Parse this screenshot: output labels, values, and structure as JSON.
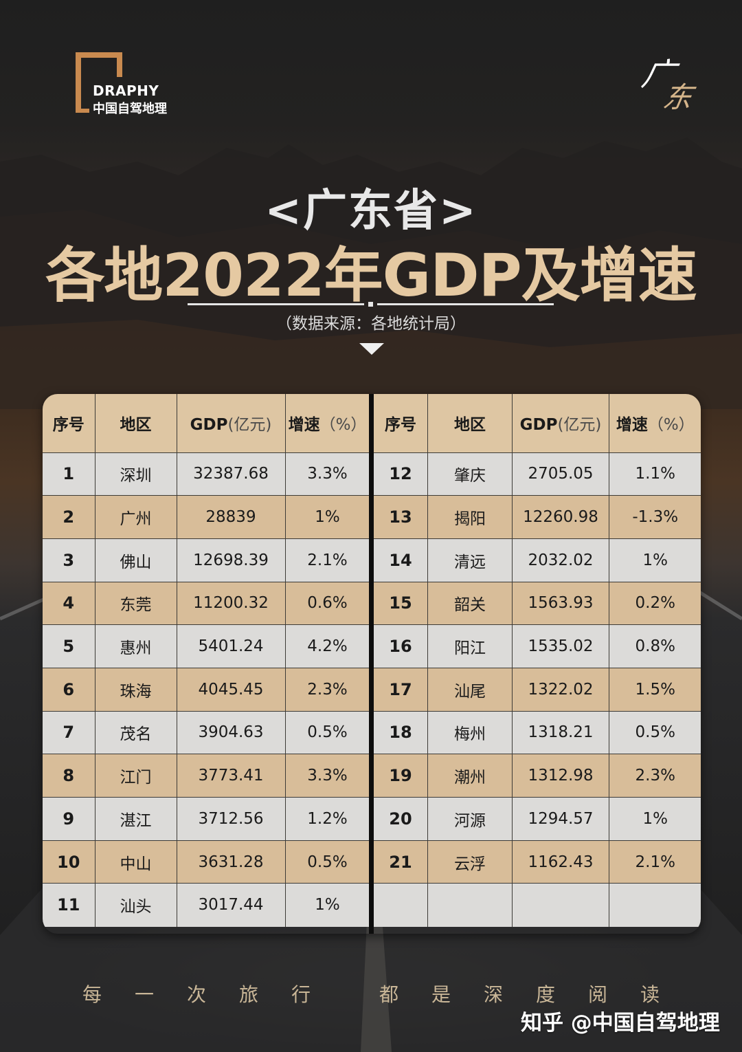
{
  "logo": {
    "brand_en": "DRAPHY",
    "brand_cn": "中国自驾地理",
    "accent_color": "#c98a4f"
  },
  "calligraphy": {
    "char1": "广",
    "char2": "东"
  },
  "header": {
    "province": "<广东省>",
    "title": "各地2022年GDP及增速",
    "source": "（数据来源：各地统计局）",
    "title_color": "#e5c9a2"
  },
  "table": {
    "columns": {
      "index": "序号",
      "region": "地区",
      "gdp": "GDP",
      "gdp_unit": "(亿元)",
      "growth": "增速",
      "growth_unit": "（%）"
    },
    "left": [
      {
        "no": "1",
        "region": "深圳",
        "gdp": "32387.68",
        "growth": "3.3%"
      },
      {
        "no": "2",
        "region": "广州",
        "gdp": "28839",
        "growth": "1%"
      },
      {
        "no": "3",
        "region": "佛山",
        "gdp": "12698.39",
        "growth": "2.1%"
      },
      {
        "no": "4",
        "region": "东莞",
        "gdp": "11200.32",
        "growth": "0.6%"
      },
      {
        "no": "5",
        "region": "惠州",
        "gdp": "5401.24",
        "growth": "4.2%"
      },
      {
        "no": "6",
        "region": "珠海",
        "gdp": "4045.45",
        "growth": "2.3%"
      },
      {
        "no": "7",
        "region": "茂名",
        "gdp": "3904.63",
        "growth": "0.5%"
      },
      {
        "no": "8",
        "region": "江门",
        "gdp": "3773.41",
        "growth": "3.3%"
      },
      {
        "no": "9",
        "region": "湛江",
        "gdp": "3712.56",
        "growth": "1.2%"
      },
      {
        "no": "10",
        "region": "中山",
        "gdp": "3631.28",
        "growth": "0.5%"
      },
      {
        "no": "11",
        "region": "汕头",
        "gdp": "3017.44",
        "growth": "1%"
      }
    ],
    "right": [
      {
        "no": "12",
        "region": "肇庆",
        "gdp": "2705.05",
        "growth": "1.1%"
      },
      {
        "no": "13",
        "region": "揭阳",
        "gdp": "12260.98",
        "growth": "-1.3%"
      },
      {
        "no": "14",
        "region": "清远",
        "gdp": "2032.02",
        "growth": "1%"
      },
      {
        "no": "15",
        "region": "韶关",
        "gdp": "1563.93",
        "growth": "0.2%"
      },
      {
        "no": "16",
        "region": "阳江",
        "gdp": "1535.02",
        "growth": "0.8%"
      },
      {
        "no": "17",
        "region": "汕尾",
        "gdp": "1322.02",
        "growth": "1.5%"
      },
      {
        "no": "18",
        "region": "梅州",
        "gdp": "1318.21",
        "growth": "0.5%"
      },
      {
        "no": "19",
        "region": "潮州",
        "gdp": "1312.98",
        "growth": "2.3%"
      },
      {
        "no": "20",
        "region": "河源",
        "gdp": "1294.57",
        "growth": "1%"
      },
      {
        "no": "21",
        "region": "云浮",
        "gdp": "1162.43",
        "growth": "2.1%"
      },
      {
        "no": "",
        "region": "",
        "gdp": "",
        "growth": ""
      }
    ],
    "colors": {
      "header_bg": "#dec6a3",
      "row_light": "#dcdbd9",
      "row_tan": "#d8bd99",
      "divider": "#0d0d0d"
    }
  },
  "footer": {
    "slogan_chars": [
      "每",
      "一",
      "次",
      "旅",
      "行",
      "都",
      "是",
      "深",
      "度",
      "阅",
      "读"
    ],
    "watermark": "知乎 @中国自驾地理"
  }
}
